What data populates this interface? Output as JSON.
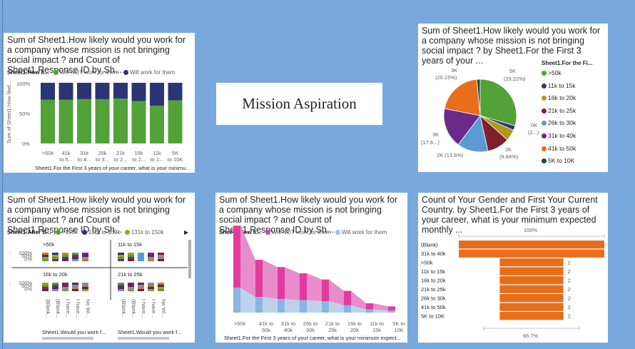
{
  "title_card": {
    "text": "Mission Aspiration"
  },
  "cards": {
    "stacked100": {
      "title": "Sum of Sheet1.How likely would you work for a company whose mission is not bringing social impact ? and Count of Sheet1.Response ID by Sh...",
      "legend_title": "Sheet1.How li...",
      "legend": [
        "Will NOT work for them",
        "Will work for them"
      ],
      "ylabel": "Sum of Sheet1.How likel...",
      "xlabel": "Sheet1.For the First 3 years of your career, what is your minimu..."
    },
    "pie": {
      "title": "Sum of Sheet1.How likely would you work for a company whose mission is not bringing social impact ? by Sheet1.For the First 3 years of your ...",
      "legend_title": "Sheet1.For the Fi...",
      "labels": {
        "l5k_v": "5K",
        "l5k_p": "(29.22%)",
        "l3k_v": "3K",
        "l3k_p": "(20.15%)",
        "l0k_v": "0K",
        "l0k_p": "(2...)",
        "l2kr_v": "2K",
        "l2kr_p": "(9.84%)",
        "l2kb": "2K (13.6%)",
        "l3kl_v": "3K",
        "l3kl_p": "(17.6...)"
      }
    },
    "small_multiples": {
      "title": "Sum of Sheet1.How likely would you work for a company whose mission is not bringing social impact ? and Count of Sheet1.Response ID by Sh...",
      "legend_title": "Sheet1.After S...",
      "legend": [
        ">151k",
        "111k to 130k",
        "131k to 150k"
      ],
      "panels": [
        ">50k",
        "11k to 15k",
        "16k to 20k",
        "21k to 25k"
      ],
      "ticks": [
        "100%",
        "50%",
        "0%"
      ],
      "x_cats_left": [
        "(Blank...",
        "(Blank...",
        "I have...",
        "I have...",
        "No Wi..."
      ],
      "x_cats_right": [
        "(Blank...",
        "(Blank...",
        "I have...",
        "I have...",
        "No Wi..."
      ],
      "xlabel_left": "Sheet1.Would you work f...",
      "xlabel_right": "Sheet1.Would you work f..."
    },
    "ribbon": {
      "title": "Sum of Sheet1.How likely would you work for a company whose mission is not bringing social impact ? and Count of Sheet1.Response ID by Sh...",
      "legend_title": "Sheet1.How li...",
      "legend": [
        "Will NOT work for them",
        "Will work for them"
      ],
      "xlabel": "Sheet1.For the First 3 years of your career, what is your minimum expect..."
    },
    "funnel": {
      "title": "Count of Your Gender and First Your Current Country. by Sheet1.For the First 3 years of your career, what is your minimum expected monthly ...",
      "top_label": "100%",
      "bottom_label": "66.7%"
    }
  },
  "chart_data": [
    {
      "type": "bar",
      "stacked": "100%",
      "categories": [
        ">50k",
        "41k to 5...",
        "31k to 4...",
        "26k to 3...",
        "21k to 2...",
        "16k to 2...",
        "11k to 1...",
        "5K to 10K"
      ],
      "series": [
        {
          "name": "Will NOT work for them",
          "values": [
            72,
            72,
            73,
            73,
            74,
            70,
            62,
            71
          ],
          "color": "#52a239"
        },
        {
          "name": "Will work for them",
          "values": [
            28,
            28,
            27,
            27,
            26,
            30,
            38,
            29
          ],
          "color": "#2c3573"
        }
      ],
      "yticks": [
        "100%",
        "50%",
        "0%"
      ]
    },
    {
      "type": "pie",
      "slices": [
        {
          "label": ">50k",
          "value": 29.22,
          "color": "#52a239"
        },
        {
          "label": "11k to 15k",
          "value": 2.0,
          "color": "#2c3573"
        },
        {
          "label": "16k to 20k",
          "value": 5.0,
          "color": "#b4981c"
        },
        {
          "label": "21k to 25k",
          "value": 9.84,
          "color": "#801f2e"
        },
        {
          "label": "26k to 30k",
          "value": 13.6,
          "color": "#5b9bd5"
        },
        {
          "label": "31k to 40k",
          "value": 17.6,
          "color": "#6a2a8c"
        },
        {
          "label": "41k to 50k",
          "value": 20.15,
          "color": "#e86e1c"
        },
        {
          "label": "5K to 10K",
          "value": 1.5,
          "color": "#174a33"
        }
      ]
    },
    {
      "type": "area",
      "categories": [
        ">50k",
        "41k to 50k",
        "31k to 40k",
        "26k to 30k",
        "21k to 25k",
        "16k to 20k",
        "11k to 15k",
        "5K to 10K"
      ],
      "series": [
        {
          "name": "Will NOT work for them",
          "values": [
            60,
            36,
            31,
            26,
            21,
            14,
            6,
            4
          ],
          "color": "#e23b9e"
        },
        {
          "name": "Will work for them",
          "values": [
            24,
            15,
            13,
            12,
            11,
            7,
            3,
            2
          ],
          "color": "#a4c2e6"
        }
      ]
    },
    {
      "type": "bar",
      "orientation": "horizontal",
      "funnel": true,
      "categories": [
        "(Blank)",
        "31k to 40k",
        ">50k",
        "11k to 15k",
        "16k to 20k",
        "21k to 25k",
        "26k to 30k",
        "41k to 50k",
        "5K to 10K"
      ],
      "values": [
        3,
        3,
        2,
        2,
        2,
        2,
        2,
        2,
        2
      ],
      "value_labels": [
        "",
        "",
        "2",
        "2",
        "2",
        "2",
        "2",
        "2",
        "2"
      ],
      "color": "#e86e1c"
    }
  ]
}
